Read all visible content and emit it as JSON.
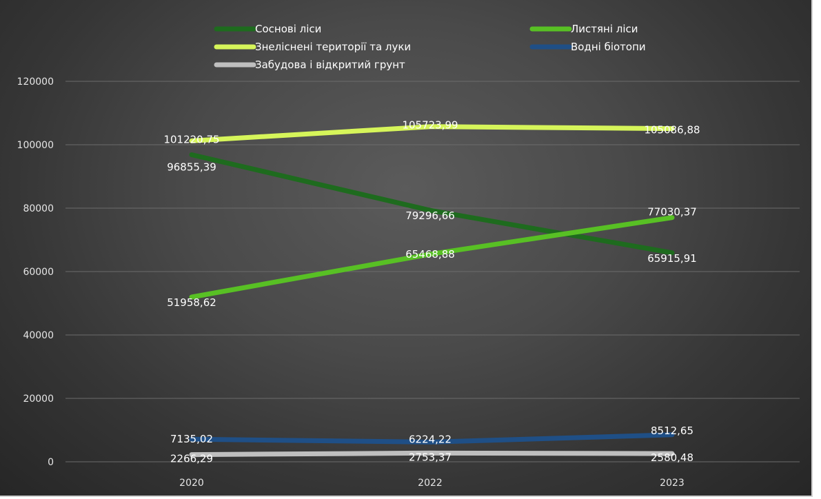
{
  "chart_data": {
    "type": "line",
    "categories": [
      "2020",
      "2022",
      "2023"
    ],
    "ylim": [
      0,
      120000
    ],
    "yticks": [
      "0",
      "20000",
      "40000",
      "60000",
      "80000",
      "100000",
      "120000"
    ],
    "grid": true,
    "legend_position": "top",
    "series": [
      {
        "name": "Соснові ліси",
        "color": "#1e6b1e",
        "values": [
          96855.39,
          79296.66,
          65915.91
        ],
        "labels": [
          "96855,39",
          "79296,66",
          "65915,91"
        ]
      },
      {
        "name": "Листяні ліси",
        "color": "#58c024",
        "values": [
          51958.62,
          65468.88,
          77030.37
        ],
        "labels": [
          "51958,62",
          "65468,88",
          "77030,37"
        ]
      },
      {
        "name": "Знелісненi території та луки",
        "color": "#d6f55a",
        "values": [
          101220.75,
          105723.99,
          105086.88
        ],
        "labels": [
          "101220,75",
          "105723,99",
          "105086,88"
        ]
      },
      {
        "name": "Водні біотопи",
        "color": "#1f4f86",
        "values": [
          7135.02,
          6224.22,
          8512.65
        ],
        "labels": [
          "7135,02",
          "6224,22",
          "8512,65"
        ]
      },
      {
        "name": "Забудова і відкритий грунт",
        "color": "#bfbfbf",
        "values": [
          2266.29,
          2753.37,
          2580.48
        ],
        "labels": [
          "2266,29",
          "2753,37",
          "2580,48"
        ]
      }
    ]
  }
}
